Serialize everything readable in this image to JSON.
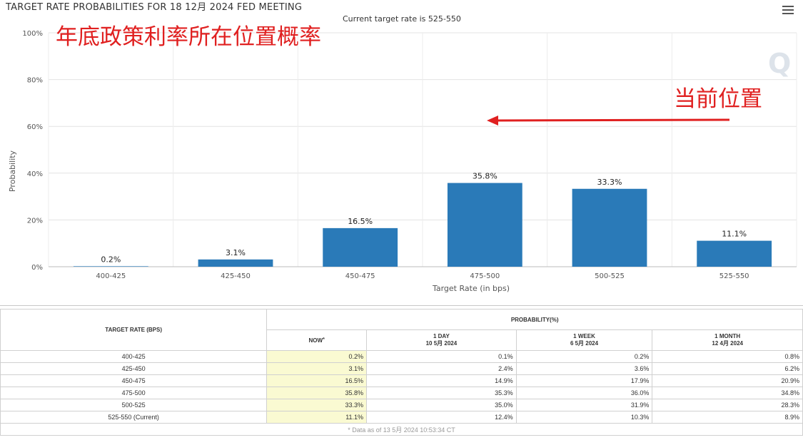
{
  "header": {
    "title": "TARGET RATE PROBABILITIES FOR 18 12月 2024 FED MEETING",
    "subtitle": "Current target rate is 525-550",
    "overlay_title": "年底政策利率所在位置概率",
    "overlay_current": "当前位置"
  },
  "chart_data": {
    "type": "bar",
    "title": "TARGET RATE PROBABILITIES FOR 18 12月 2024 FED MEETING",
    "subtitle": "Current target rate is 525-550",
    "xlabel": "Target Rate (in bps)",
    "ylabel": "Probability",
    "categories": [
      "400-425",
      "425-450",
      "450-475",
      "475-500",
      "500-525",
      "525-550"
    ],
    "values": [
      0.2,
      3.1,
      16.5,
      35.8,
      33.3,
      11.1
    ],
    "value_labels": [
      "0.2%",
      "3.1%",
      "16.5%",
      "35.8%",
      "33.3%",
      "11.1%"
    ],
    "yticks": [
      0,
      20,
      40,
      60,
      80,
      100
    ],
    "ytick_labels": [
      "0%",
      "20%",
      "40%",
      "60%",
      "80%",
      "100%"
    ],
    "ylim": [
      0,
      100
    ],
    "grid": true,
    "bar_color": "#2a7ab8",
    "annotation_color": "#e02020"
  },
  "table": {
    "rate_header": "TARGET RATE (BPS)",
    "prob_header": "PROBABILITY(%)",
    "columns": [
      {
        "line1": "NOW",
        "line2": "",
        "marker": "*"
      },
      {
        "line1": "1 DAY",
        "line2": "10 5月 2024",
        "marker": ""
      },
      {
        "line1": "1 WEEK",
        "line2": "6 5月 2024",
        "marker": ""
      },
      {
        "line1": "1 MONTH",
        "line2": "12 4月 2024",
        "marker": ""
      }
    ],
    "rows": [
      {
        "rate": "400-425",
        "now": "0.2%",
        "day": "0.1%",
        "week": "0.2%",
        "month": "0.8%"
      },
      {
        "rate": "425-450",
        "now": "3.1%",
        "day": "2.4%",
        "week": "3.6%",
        "month": "6.2%"
      },
      {
        "rate": "450-475",
        "now": "16.5%",
        "day": "14.9%",
        "week": "17.9%",
        "month": "20.9%"
      },
      {
        "rate": "475-500",
        "now": "35.8%",
        "day": "35.3%",
        "week": "36.0%",
        "month": "34.8%"
      },
      {
        "rate": "500-525",
        "now": "33.3%",
        "day": "35.0%",
        "week": "31.9%",
        "month": "28.3%"
      },
      {
        "rate": "525-550 (Current)",
        "now": "11.1%",
        "day": "12.4%",
        "week": "10.3%",
        "month": "8.9%"
      }
    ],
    "footnote": "* Data as of 13 5月 2024 10:53:34 CT"
  }
}
